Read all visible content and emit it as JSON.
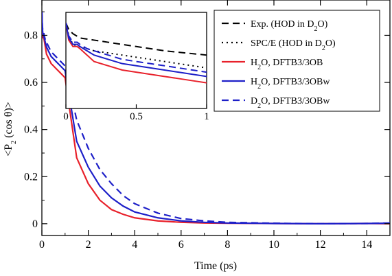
{
  "chart_data": {
    "type": "line",
    "title": "",
    "xlabel": "Time (ps)",
    "ylabel": "<P2 (cos θ)>",
    "ylabel_parts": {
      "prefix": "<P",
      "sub": "2",
      "suffix": " (cos θ)>"
    },
    "xlim": [
      0,
      15
    ],
    "ylim": [
      -0.05,
      0.95
    ],
    "xticks": [
      0,
      2,
      4,
      6,
      8,
      10,
      12,
      14
    ],
    "yticks": [
      0,
      0.2,
      0.4,
      0.6,
      0.8
    ],
    "xtick_labels": [
      "0",
      "2",
      "4",
      "6",
      "8",
      "10",
      "12",
      "14"
    ],
    "ytick_labels": [
      "0",
      "0.2",
      "0.4",
      "0.6",
      "0.8"
    ],
    "grid": false,
    "legend_position": "top-right",
    "series": [
      {
        "name": "Exp. (HOD in D2O)",
        "legend_parts": {
          "prefix": "Exp. (HOD in D",
          "sub": "2",
          "suffix": "O)"
        },
        "color": "#000000",
        "dash": "dashed",
        "main_plot": false,
        "x": [
          0,
          0.02,
          0.05,
          0.1,
          0.2,
          0.3,
          0.5,
          0.7,
          1.0
        ],
        "y": [
          0.9,
          0.87,
          0.85,
          0.83,
          0.82,
          0.81,
          0.79,
          0.77,
          0.75
        ]
      },
      {
        "name": "SPC/E (HOD in D2O)",
        "legend_parts": {
          "prefix": "SPC/E (HOD in D",
          "sub": "2",
          "suffix": "O)"
        },
        "color": "#000000",
        "dash": "dotted",
        "main_plot": false,
        "x": [
          0,
          0.02,
          0.05,
          0.1,
          0.2,
          0.3,
          0.5,
          0.7,
          1.0
        ],
        "y": [
          0.9,
          0.84,
          0.8,
          0.79,
          0.77,
          0.76,
          0.74,
          0.72,
          0.69
        ]
      },
      {
        "name": "H2O, DFTB3/3OB",
        "legend_parts": {
          "prefix": "H",
          "sub": "2",
          "suffix": "O, DFTB3/3OB"
        },
        "color": "#e8212b",
        "dash": "solid",
        "main_plot": true,
        "x": [
          0,
          0.02,
          0.05,
          0.08,
          0.1,
          0.15,
          0.2,
          0.3,
          0.4,
          0.5,
          0.6,
          0.7,
          0.8,
          0.9,
          1.0,
          1.5,
          2.0,
          2.5,
          3.0,
          3.5,
          4.0,
          5.0,
          6.0,
          7.0,
          8.0,
          10.0,
          12.0,
          14.0,
          15.0
        ],
        "y": [
          0.9,
          0.82,
          0.79,
          0.79,
          0.78,
          0.75,
          0.72,
          0.7,
          0.68,
          0.67,
          0.66,
          0.65,
          0.64,
          0.63,
          0.62,
          0.28,
          0.17,
          0.1,
          0.06,
          0.04,
          0.025,
          0.012,
          0.006,
          0.003,
          0.002,
          0.001,
          0.0,
          0.001,
          0.0
        ]
      },
      {
        "name": "H2O, DFTB3/3OBw",
        "legend_parts": {
          "prefix": "H",
          "sub": "2",
          "suffix": "O, DFTB3/3OBw"
        },
        "color": "#1d1fc8",
        "dash": "solid",
        "main_plot": true,
        "x": [
          0,
          0.02,
          0.05,
          0.08,
          0.1,
          0.15,
          0.2,
          0.3,
          0.4,
          0.5,
          0.6,
          0.7,
          0.8,
          0.9,
          1.0,
          1.5,
          2.0,
          2.5,
          3.0,
          3.5,
          4.0,
          5.0,
          6.0,
          7.0,
          8.0,
          10.0,
          12.0,
          14.0,
          15.0
        ],
        "y": [
          0.9,
          0.83,
          0.8,
          0.8,
          0.79,
          0.77,
          0.75,
          0.73,
          0.71,
          0.7,
          0.69,
          0.68,
          0.67,
          0.66,
          0.65,
          0.35,
          0.24,
          0.16,
          0.11,
          0.075,
          0.05,
          0.025,
          0.012,
          0.006,
          0.003,
          0.001,
          0.0,
          0.001,
          0.002
        ]
      },
      {
        "name": "D2O, DFTB3/3OBw",
        "legend_parts": {
          "prefix": "D",
          "sub": "2",
          "suffix": "O, DFTB3/3OBw"
        },
        "color": "#1d1fc8",
        "dash": "dashed",
        "main_plot": true,
        "x": [
          0,
          0.02,
          0.05,
          0.08,
          0.1,
          0.15,
          0.2,
          0.3,
          0.4,
          0.5,
          0.6,
          0.7,
          0.8,
          0.9,
          1.0,
          1.5,
          2.0,
          2.5,
          3.0,
          3.5,
          4.0,
          5.0,
          6.0,
          7.0,
          8.0,
          10.0,
          12.0,
          14.0,
          15.0
        ],
        "y": [
          0.9,
          0.84,
          0.81,
          0.81,
          0.8,
          0.78,
          0.77,
          0.75,
          0.73,
          0.72,
          0.71,
          0.7,
          0.69,
          0.68,
          0.67,
          0.44,
          0.32,
          0.23,
          0.17,
          0.12,
          0.085,
          0.045,
          0.022,
          0.012,
          0.006,
          0.002,
          0.0,
          0.001,
          0.003
        ]
      }
    ],
    "inset": {
      "xlim": [
        0,
        1
      ],
      "ylim": [
        0.5,
        0.95
      ],
      "xticks": [
        0,
        0.5,
        1
      ],
      "xtick_labels": [
        "0",
        "0.5",
        "1"
      ]
    }
  }
}
